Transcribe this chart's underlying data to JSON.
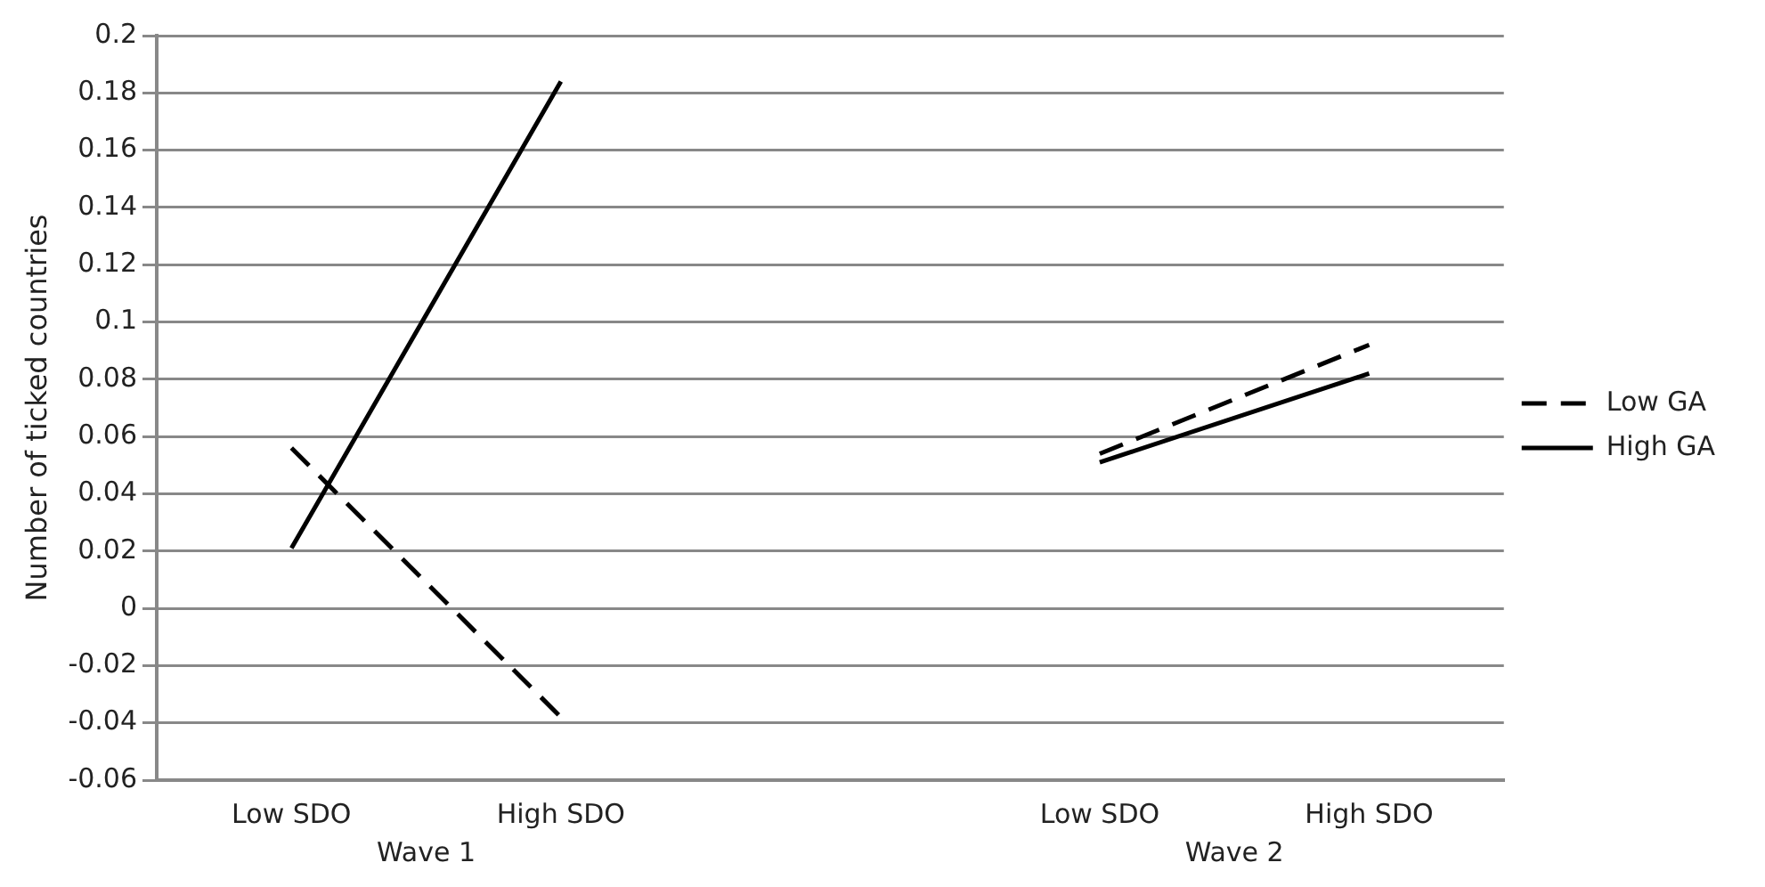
{
  "chart_data": {
    "type": "line",
    "ylabel": "Number of ticked countries",
    "categories": [
      "Low SDO",
      "High SDO",
      null,
      "Low SDO",
      "High SDO"
    ],
    "series": [
      {
        "name": "Low GA",
        "color": "#000000",
        "line_style": "dashed",
        "values": [
          0.056,
          -0.038,
          null,
          0.054,
          0.092
        ]
      },
      {
        "name": "High GA",
        "color": "#000000",
        "line_style": "solid",
        "values": [
          0.021,
          0.184,
          null,
          0.051,
          0.082
        ]
      }
    ],
    "ylim": [
      -0.06,
      0.2
    ],
    "yticks": [
      -0.06,
      -0.04,
      -0.02,
      0,
      0.02,
      0.04,
      0.06,
      0.08,
      0.1,
      0.12,
      0.14,
      0.16,
      0.18,
      0.2
    ],
    "grid": "y",
    "legend": "right",
    "marker": "none",
    "annotations": [
      "Wave 1",
      "Wave 2"
    ]
  }
}
